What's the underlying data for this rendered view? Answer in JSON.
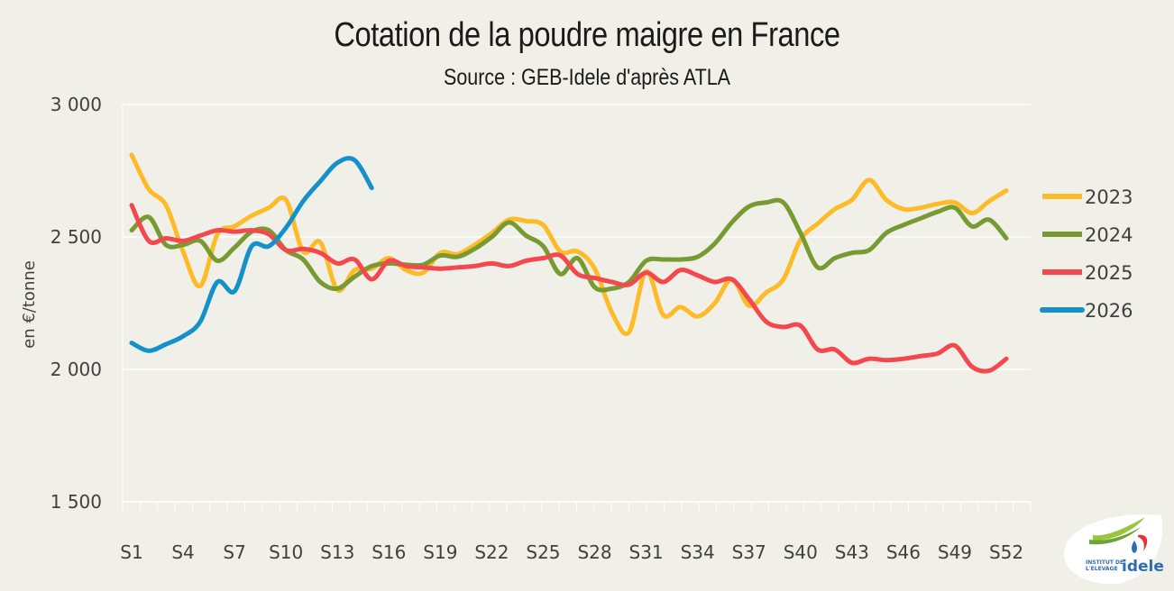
{
  "title": "Cotation de la poudre maigre en France",
  "subtitle": "Source : GEB-Idele d'après ATLA",
  "logo": {
    "line1": "INSTITUT DE",
    "line2": "L'ELEVAGE",
    "brand": "idele",
    "icon": "idele-logo-icon"
  },
  "chart_data": {
    "type": "line",
    "title": "Cotation de la poudre maigre en France",
    "subtitle": "Source : GEB-Idele d'après ATLA",
    "xlabel": "",
    "ylabel": "en €/tonne",
    "ylim": [
      1500,
      3000
    ],
    "yticks": [
      1500,
      2000,
      2500,
      3000
    ],
    "ytick_labels": [
      "1 500",
      "2 000",
      "2 500",
      "3 000"
    ],
    "x": [
      "S1",
      "S2",
      "S3",
      "S4",
      "S5",
      "S6",
      "S7",
      "S8",
      "S9",
      "S10",
      "S11",
      "S12",
      "S13",
      "S14",
      "S15",
      "S16",
      "S17",
      "S18",
      "S19",
      "S20",
      "S21",
      "S22",
      "S23",
      "S24",
      "S25",
      "S26",
      "S27",
      "S28",
      "S29",
      "S30",
      "S31",
      "S32",
      "S33",
      "S34",
      "S35",
      "S36",
      "S37",
      "S38",
      "S39",
      "S40",
      "S41",
      "S42",
      "S43",
      "S44",
      "S45",
      "S46",
      "S47",
      "S48",
      "S49",
      "S50",
      "S51",
      "S52"
    ],
    "xtick_labels": [
      "S1",
      "S4",
      "S7",
      "S10",
      "S13",
      "S16",
      "S19",
      "S22",
      "S25",
      "S28",
      "S31",
      "S34",
      "S37",
      "S40",
      "S43",
      "S46",
      "S49",
      "S52"
    ],
    "grid": "horizontal",
    "legend_position": "right",
    "series": [
      {
        "name": "2023",
        "color": "#FDBB2A",
        "values": [
          2810,
          2680,
          2620,
          2445,
          2315,
          2510,
          2540,
          2580,
          2610,
          2640,
          2445,
          2480,
          2300,
          2375,
          2380,
          2420,
          2375,
          2365,
          2440,
          2435,
          2470,
          2515,
          2565,
          2560,
          2545,
          2445,
          2445,
          2380,
          2215,
          2140,
          2370,
          2205,
          2235,
          2200,
          2250,
          2340,
          2240,
          2290,
          2340,
          2490,
          2550,
          2605,
          2640,
          2715,
          2640,
          2605,
          2610,
          2625,
          2630,
          2590,
          2635,
          2675
        ]
      },
      {
        "name": "2024",
        "color": "#779A32",
        "values": [
          2525,
          2575,
          2470,
          2470,
          2485,
          2410,
          2460,
          2520,
          2525,
          2450,
          2415,
          2330,
          2305,
          2350,
          2390,
          2400,
          2395,
          2395,
          2430,
          2425,
          2455,
          2500,
          2555,
          2505,
          2465,
          2360,
          2420,
          2310,
          2305,
          2330,
          2410,
          2415,
          2415,
          2425,
          2475,
          2555,
          2615,
          2630,
          2630,
          2515,
          2385,
          2420,
          2440,
          2450,
          2515,
          2545,
          2570,
          2595,
          2610,
          2540,
          2565,
          2495
        ]
      },
      {
        "name": "2025",
        "color": "#F4484F",
        "values": [
          2620,
          2485,
          2495,
          2485,
          2505,
          2525,
          2520,
          2525,
          2510,
          2450,
          2455,
          2440,
          2400,
          2415,
          2340,
          2410,
          2390,
          2385,
          2380,
          2385,
          2390,
          2400,
          2390,
          2410,
          2420,
          2430,
          2360,
          2345,
          2330,
          2320,
          2365,
          2330,
          2375,
          2355,
          2330,
          2340,
          2265,
          2180,
          2160,
          2165,
          2075,
          2075,
          2025,
          2040,
          2035,
          2040,
          2050,
          2060,
          2090,
          2010,
          1995,
          2040
        ]
      },
      {
        "name": "2026",
        "color": "#1591C9",
        "values": [
          2100,
          2070,
          2095,
          2125,
          2180,
          2330,
          2295,
          2465,
          2465,
          2535,
          2635,
          2710,
          2780,
          2790,
          2685
        ]
      }
    ]
  }
}
